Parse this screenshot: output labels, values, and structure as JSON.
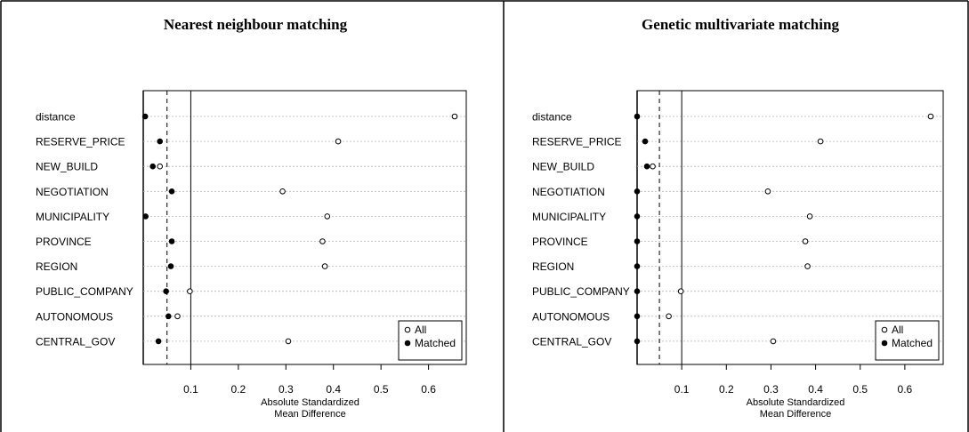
{
  "chart_data": [
    {
      "type": "scatter",
      "title": "Nearest neighbour matching",
      "xlabel": "Absolute Standardized Mean Difference",
      "xlabel_lines": [
        "Absolute Standardized",
        "Mean Difference"
      ],
      "xlim": [
        0,
        0.67
      ],
      "xticks": [
        0.1,
        0.2,
        0.3,
        0.4,
        0.5,
        0.6
      ],
      "xtick_labels": [
        "0.1",
        "0.2",
        "0.3",
        "0.4",
        "0.5",
        "0.6"
      ],
      "reference_lines": {
        "dashed": 0.05,
        "solid": 0.1
      },
      "grid": true,
      "legend_position": "bottom-right",
      "legend": [
        "All",
        "Matched"
      ],
      "categories": [
        "distance",
        "RESERVE_PRICE",
        "NEW_BUILD",
        "NEGOTIATION",
        "MUNICIPALITY",
        "PROVINCE",
        "REGION",
        "PUBLIC_COMPANY",
        "AUTONOMOUS",
        "CENTRAL_GOV"
      ],
      "series": [
        {
          "name": "All",
          "marker": "open-circle",
          "values": [
            0.655,
            0.41,
            0.035,
            0.293,
            0.387,
            0.377,
            0.382,
            0.098,
            0.072,
            0.305
          ]
        },
        {
          "name": "Matched",
          "marker": "filled-circle",
          "values": [
            0.004,
            0.035,
            0.02,
            0.06,
            0.005,
            0.06,
            0.058,
            0.048,
            0.053,
            0.032
          ]
        }
      ]
    },
    {
      "type": "scatter",
      "title": "Genetic multivariate matching",
      "xlabel": "Absolute Standardized Mean Difference",
      "xlabel_lines": [
        "Absolute Standardized",
        "Mean Difference"
      ],
      "xlim": [
        0,
        0.67
      ],
      "xticks": [
        0.1,
        0.2,
        0.3,
        0.4,
        0.5,
        0.6
      ],
      "xtick_labels": [
        "0.1",
        "0.2",
        "0.3",
        "0.4",
        "0.5",
        "0.6"
      ],
      "reference_lines": {
        "dashed": 0.05,
        "solid": 0.1
      },
      "grid": true,
      "legend_position": "bottom-right",
      "legend": [
        "All",
        "Matched"
      ],
      "categories": [
        "distance",
        "RESERVE_PRICE",
        "NEW_BUILD",
        "NEGOTIATION",
        "MUNICIPALITY",
        "PROVINCE",
        "REGION",
        "PUBLIC_COMPANY",
        "AUTONOMOUS",
        "CENTRAL_GOV"
      ],
      "series": [
        {
          "name": "All",
          "marker": "open-circle",
          "values": [
            0.658,
            0.411,
            0.035,
            0.293,
            0.387,
            0.377,
            0.382,
            0.098,
            0.071,
            0.305
          ]
        },
        {
          "name": "Matched",
          "marker": "filled-circle",
          "values": [
            0.0,
            0.018,
            0.022,
            0.0,
            0.0,
            0.0,
            0.0,
            0.0,
            0.0,
            0.0
          ]
        }
      ]
    }
  ]
}
